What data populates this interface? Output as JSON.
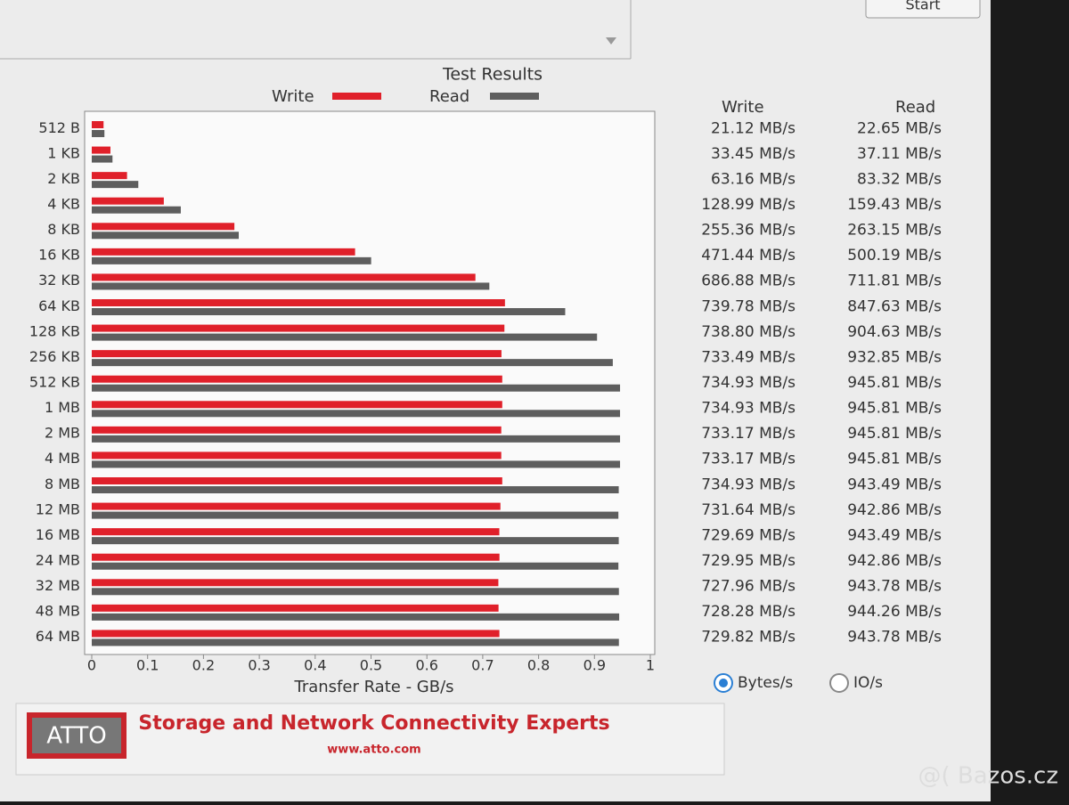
{
  "chart_data": {
    "type": "bar",
    "orientation": "horizontal",
    "title": "Test Results",
    "xlabel": "Transfer Rate - GB/s",
    "categories": [
      "512 B",
      "1 KB",
      "2 KB",
      "4 KB",
      "8 KB",
      "16 KB",
      "32 KB",
      "64 KB",
      "128 KB",
      "256 KB",
      "512 KB",
      "1 MB",
      "2 MB",
      "4 MB",
      "8 MB",
      "12 MB",
      "16 MB",
      "24 MB",
      "32 MB",
      "48 MB",
      "64 MB"
    ],
    "series": [
      {
        "name": "Write",
        "color": "#e0202a",
        "values": [
          0.02112,
          0.03345,
          0.06316,
          0.12899,
          0.25536,
          0.47144,
          0.68688,
          0.73978,
          0.7388,
          0.73349,
          0.73493,
          0.73493,
          0.73317,
          0.73317,
          0.73493,
          0.73164,
          0.72969,
          0.72995,
          0.72796,
          0.72828,
          0.72982
        ],
        "value_labels": [
          "21.12 MB/s",
          "33.45 MB/s",
          "63.16 MB/s",
          "128.99 MB/s",
          "255.36 MB/s",
          "471.44 MB/s",
          "686.88 MB/s",
          "739.78 MB/s",
          "738.80 MB/s",
          "733.49 MB/s",
          "734.93 MB/s",
          "734.93 MB/s",
          "733.17 MB/s",
          "733.17 MB/s",
          "734.93 MB/s",
          "731.64 MB/s",
          "729.69 MB/s",
          "729.95 MB/s",
          "727.96 MB/s",
          "728.28 MB/s",
          "729.82 MB/s"
        ]
      },
      {
        "name": "Read",
        "color": "#5e5e5e",
        "values": [
          0.02265,
          0.03711,
          0.08332,
          0.15943,
          0.26315,
          0.50019,
          0.71181,
          0.84763,
          0.90463,
          0.93285,
          0.94581,
          0.94581,
          0.94581,
          0.94581,
          0.94349,
          0.94286,
          0.94349,
          0.94286,
          0.94378,
          0.94426,
          0.94378
        ],
        "value_labels": [
          "22.65 MB/s",
          "37.11 MB/s",
          "83.32 MB/s",
          "159.43 MB/s",
          "263.15 MB/s",
          "500.19 MB/s",
          "711.81 MB/s",
          "847.63 MB/s",
          "904.63 MB/s",
          "932.85 MB/s",
          "945.81 MB/s",
          "945.81 MB/s",
          "945.81 MB/s",
          "945.81 MB/s",
          "943.49 MB/s",
          "942.86 MB/s",
          "943.49 MB/s",
          "942.86 MB/s",
          "943.78 MB/s",
          "944.26 MB/s",
          "943.78 MB/s"
        ]
      }
    ],
    "xlim": [
      0,
      1
    ],
    "xticks": [
      0,
      0.1,
      0.2,
      0.3,
      0.4,
      0.5,
      0.6,
      0.7,
      0.8,
      0.9,
      1
    ]
  },
  "ui": {
    "start_button": "Start",
    "column_headers": [
      "Write",
      "Read"
    ],
    "radio_options": [
      {
        "label": "Bytes/s",
        "selected": true
      },
      {
        "label": "IO/s",
        "selected": false
      }
    ],
    "logo": "ATTO",
    "tagline": "Storage and Network Connectivity Experts",
    "website": "www.atto.com",
    "watermark": "@( Bazos.cz"
  }
}
